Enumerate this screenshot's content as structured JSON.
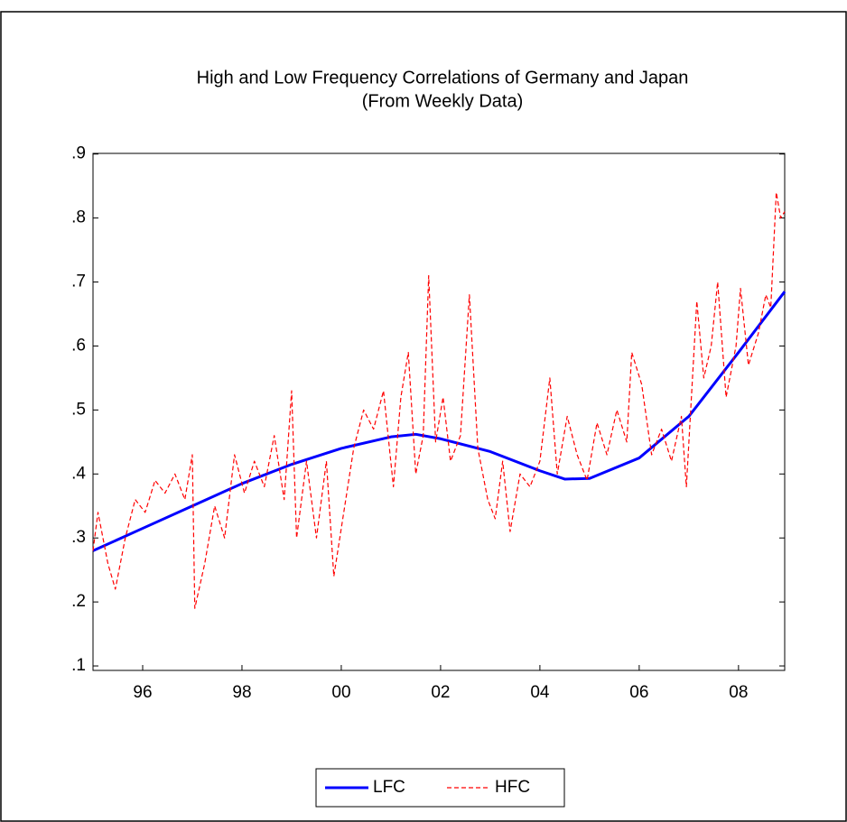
{
  "chart_data": {
    "type": "line",
    "title": "High and Low Frequency Correlations of Germany and Japan",
    "subtitle": "(From Weekly Data)",
    "xlim": [
      1995.0,
      2008.93
    ],
    "ylim": [
      0.093,
      0.901
    ],
    "xticks": [
      {
        "value": 1996,
        "label": "96"
      },
      {
        "value": 1998,
        "label": "98"
      },
      {
        "value": 2000,
        "label": "00"
      },
      {
        "value": 2002,
        "label": "02"
      },
      {
        "value": 2004,
        "label": "04"
      },
      {
        "value": 2006,
        "label": "06"
      },
      {
        "value": 2008,
        "label": "08"
      }
    ],
    "yticks": [
      {
        "value": 0.1,
        "label": ".1"
      },
      {
        "value": 0.2,
        "label": ".2"
      },
      {
        "value": 0.3,
        "label": ".3"
      },
      {
        "value": 0.4,
        "label": ".4"
      },
      {
        "value": 0.5,
        "label": ".5"
      },
      {
        "value": 0.6,
        "label": ".6"
      },
      {
        "value": 0.7,
        "label": ".7"
      },
      {
        "value": 0.8,
        "label": ".8"
      },
      {
        "value": 0.9,
        "label": ".9"
      }
    ],
    "grid": false,
    "legend": "bottom",
    "series": [
      {
        "name": "LFC",
        "color": "#0000ff",
        "style": "solid",
        "x": [
          1995.0,
          1996,
          1997,
          1998,
          1999,
          2000,
          2001,
          2001.5,
          2002,
          2003,
          2004,
          2004.5,
          2005,
          2006,
          2007,
          2008,
          2008.93
        ],
        "values": [
          0.28,
          0.315,
          0.35,
          0.385,
          0.415,
          0.44,
          0.458,
          0.462,
          0.455,
          0.435,
          0.405,
          0.392,
          0.393,
          0.425,
          0.49,
          0.59,
          0.685
        ]
      },
      {
        "name": "HFC",
        "color": "#ff0000",
        "style": "dashed",
        "x": [
          1995.0,
          1995.1,
          1995.3,
          1995.45,
          1995.65,
          1995.85,
          1996.05,
          1996.25,
          1996.45,
          1996.65,
          1996.85,
          1997.0,
          1997.05,
          1997.25,
          1997.45,
          1997.65,
          1997.85,
          1998.05,
          1998.25,
          1998.45,
          1998.65,
          1998.85,
          1999.0,
          1999.1,
          1999.3,
          1999.5,
          1999.7,
          1999.85,
          2000.05,
          2000.25,
          2000.45,
          2000.65,
          2000.85,
          2001.05,
          2001.2,
          2001.35,
          2001.5,
          2001.65,
          2001.76,
          2001.9,
          2002.05,
          2002.2,
          2002.4,
          2002.58,
          2002.75,
          2002.95,
          2003.1,
          2003.25,
          2003.4,
          2003.6,
          2003.8,
          2004.0,
          2004.2,
          2004.35,
          2004.55,
          2004.75,
          2004.95,
          2005.15,
          2005.35,
          2005.55,
          2005.75,
          2005.85,
          2006.05,
          2006.25,
          2006.45,
          2006.65,
          2006.85,
          2006.95,
          2007.16,
          2007.3,
          2007.45,
          2007.58,
          2007.75,
          2007.95,
          2008.04,
          2008.2,
          2008.4,
          2008.55,
          2008.65,
          2008.76,
          2008.85,
          2008.93
        ],
        "values": [
          0.28,
          0.34,
          0.26,
          0.22,
          0.3,
          0.36,
          0.34,
          0.39,
          0.37,
          0.4,
          0.36,
          0.43,
          0.19,
          0.26,
          0.35,
          0.3,
          0.43,
          0.37,
          0.42,
          0.38,
          0.46,
          0.36,
          0.53,
          0.3,
          0.42,
          0.3,
          0.42,
          0.24,
          0.34,
          0.44,
          0.5,
          0.47,
          0.53,
          0.38,
          0.52,
          0.59,
          0.4,
          0.46,
          0.71,
          0.45,
          0.52,
          0.42,
          0.46,
          0.68,
          0.44,
          0.36,
          0.33,
          0.42,
          0.31,
          0.4,
          0.38,
          0.42,
          0.55,
          0.4,
          0.49,
          0.43,
          0.39,
          0.48,
          0.43,
          0.5,
          0.45,
          0.59,
          0.54,
          0.43,
          0.47,
          0.42,
          0.49,
          0.38,
          0.67,
          0.55,
          0.6,
          0.7,
          0.52,
          0.6,
          0.69,
          0.57,
          0.62,
          0.68,
          0.66,
          0.84,
          0.8,
          0.81
        ]
      }
    ]
  }
}
